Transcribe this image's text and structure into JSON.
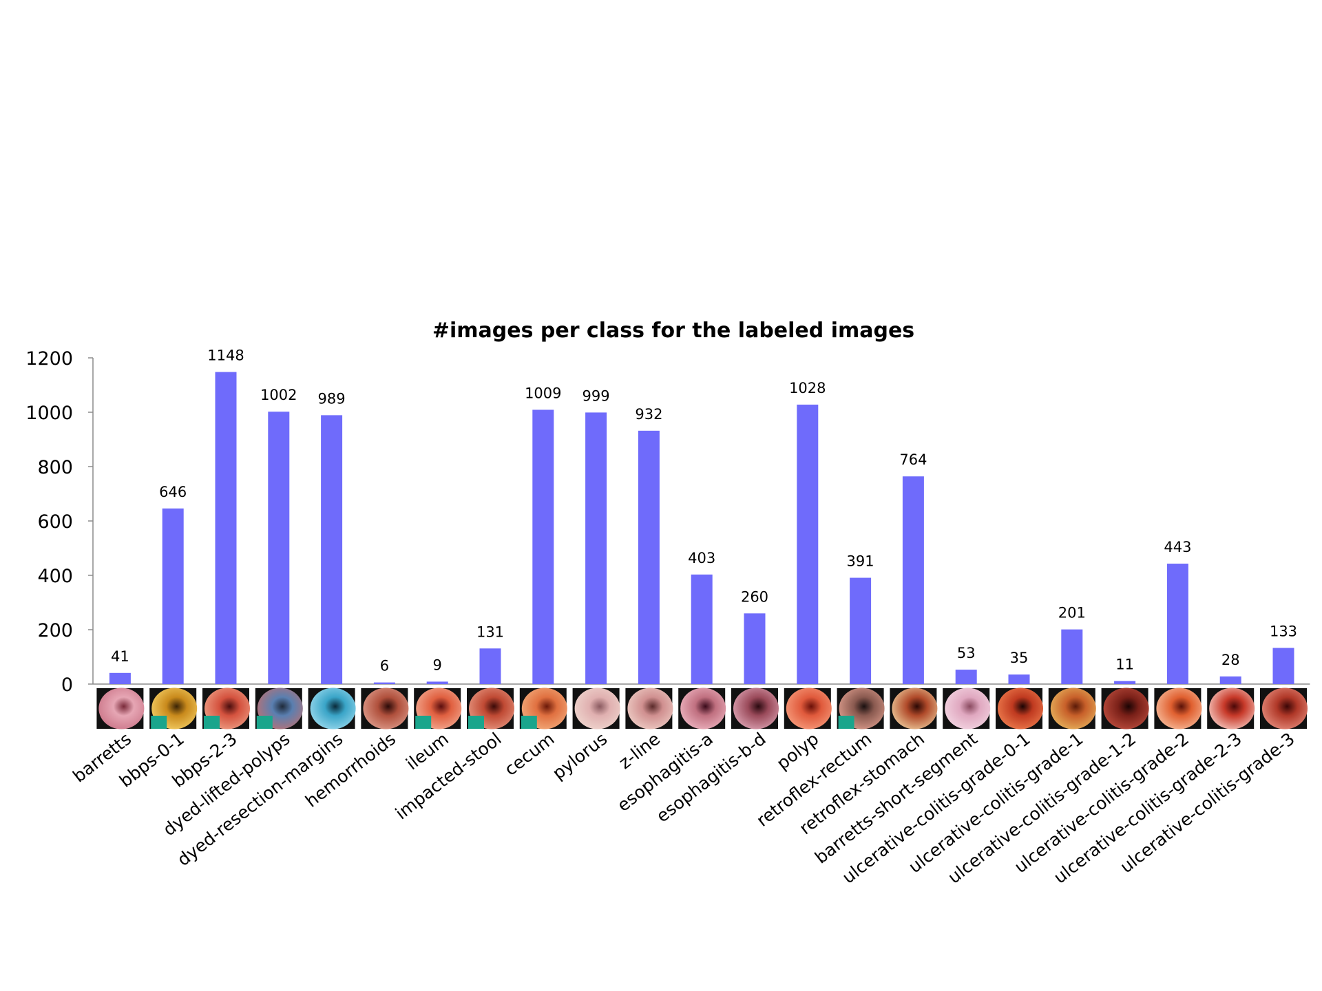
{
  "chart_data": {
    "type": "bar",
    "title": "#images per class for the labeled images",
    "xlabel": "",
    "ylabel": "",
    "ylim": [
      0,
      1200
    ],
    "yticks": [
      0,
      200,
      400,
      600,
      800,
      1000,
      1200
    ],
    "categories": [
      "barretts",
      "bbps-0-1",
      "bbps-2-3",
      "dyed-lifted-polyps",
      "dyed-resection-margins",
      "hemorrhoids",
      "ileum",
      "impacted-stool",
      "cecum",
      "pylorus",
      "z-line",
      "esophagitis-a",
      "esophagitis-b-d",
      "polyp",
      "retroflex-rectum",
      "retroflex-stomach",
      "barretts-short-segment",
      "ulcerative-colitis-grade-0-1",
      "ulcerative-colitis-grade-1",
      "ulcerative-colitis-grade-1-2",
      "ulcerative-colitis-grade-2",
      "ulcerative-colitis-grade-2-3",
      "ulcerative-colitis-grade-3"
    ],
    "values": [
      41,
      646,
      1148,
      1002,
      989,
      6,
      9,
      131,
      1009,
      999,
      932,
      403,
      260,
      1028,
      391,
      764,
      53,
      35,
      201,
      11,
      443,
      28,
      133
    ],
    "data_labels": [
      "41",
      "646",
      "1148",
      "1002",
      "989",
      "6",
      "9",
      "131",
      "1009",
      "999",
      "932",
      "403",
      "260",
      "1028",
      "391",
      "764",
      "53",
      "35",
      "201",
      "11",
      "443",
      "28",
      "133"
    ],
    "bar_color": "#6f6bfb",
    "grid": false,
    "legend": "none",
    "thumbnails": {
      "description_icon": "endoscopy-thumbnail",
      "marker_color": "#1aa58c",
      "marked": [
        false,
        true,
        true,
        true,
        false,
        false,
        true,
        true,
        true,
        false,
        false,
        false,
        false,
        false,
        true,
        false,
        false,
        false,
        false,
        false,
        false,
        false,
        false
      ],
      "palettes": [
        [
          "#7a2a3a",
          "#e6a6b4",
          "#c97285"
        ],
        [
          "#3a2406",
          "#c98a1c",
          "#f7d36a"
        ],
        [
          "#4a0e0e",
          "#d4523e",
          "#f0a48a"
        ],
        [
          "#1f2a3a",
          "#5a7fb0",
          "#c07070"
        ],
        [
          "#0a2a3a",
          "#3aa5c8",
          "#9fdcef"
        ],
        [
          "#2a0a08",
          "#b0503c",
          "#e0a090"
        ],
        [
          "#5a0e0e",
          "#e06040",
          "#f4b098"
        ],
        [
          "#3a0a08",
          "#c04a34",
          "#e89a84"
        ],
        [
          "#6a1808",
          "#e07040",
          "#f4b080"
        ],
        [
          "#8a5a60",
          "#e0b0b0",
          "#f0d8d0"
        ],
        [
          "#5a2a2a",
          "#d09090",
          "#f0d0c8"
        ],
        [
          "#3a0a1a",
          "#c07080",
          "#f0b8c4"
        ],
        [
          "#2a0a10",
          "#9a4a5a",
          "#e0a8b8"
        ],
        [
          "#6a1008",
          "#e05a3c",
          "#f8a080"
        ],
        [
          "#1a1010",
          "#8a5a50",
          "#e0a090"
        ],
        [
          "#2a0804",
          "#b04a2a",
          "#f0d0a0"
        ],
        [
          "#8a4a60",
          "#e0a8c0",
          "#f4d8e4"
        ],
        [
          "#1a0404",
          "#c03a20",
          "#f08050"
        ],
        [
          "#5a1a08",
          "#c8602a",
          "#e8b860"
        ],
        [
          "#1a0404",
          "#7a2018",
          "#c05040"
        ],
        [
          "#5a1208",
          "#e06030",
          "#f8c0a0"
        ],
        [
          "#4a0808",
          "#c83a2a",
          "#f8d0c8"
        ],
        [
          "#3a0606",
          "#b03828",
          "#e89080"
        ]
      ]
    }
  }
}
